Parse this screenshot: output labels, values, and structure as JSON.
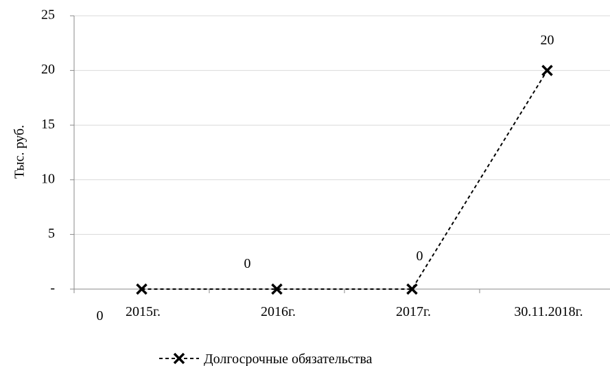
{
  "chart_data": {
    "type": "line",
    "title": "",
    "xlabel": "",
    "ylabel": "Тыс. руб.",
    "categories": [
      "2015г.",
      "2016г.",
      "2017г.",
      "30.11.2018г."
    ],
    "series": [
      {
        "name": "Долгосрочные обязательства",
        "values": [
          0,
          0,
          0,
          20
        ],
        "data_labels": [
          "0",
          "0",
          "0",
          "20"
        ],
        "color": "#000000",
        "line_style": "dashed",
        "marker": "x"
      }
    ],
    "ylim": [
      0,
      25
    ],
    "yticks": [
      {
        "value": 0,
        "label": "-"
      },
      {
        "value": 5,
        "label": "5"
      },
      {
        "value": 10,
        "label": "10"
      },
      {
        "value": 15,
        "label": "15"
      },
      {
        "value": 20,
        "label": "20"
      },
      {
        "value": 25,
        "label": "25"
      }
    ],
    "grid": true,
    "legend": "bottom"
  }
}
